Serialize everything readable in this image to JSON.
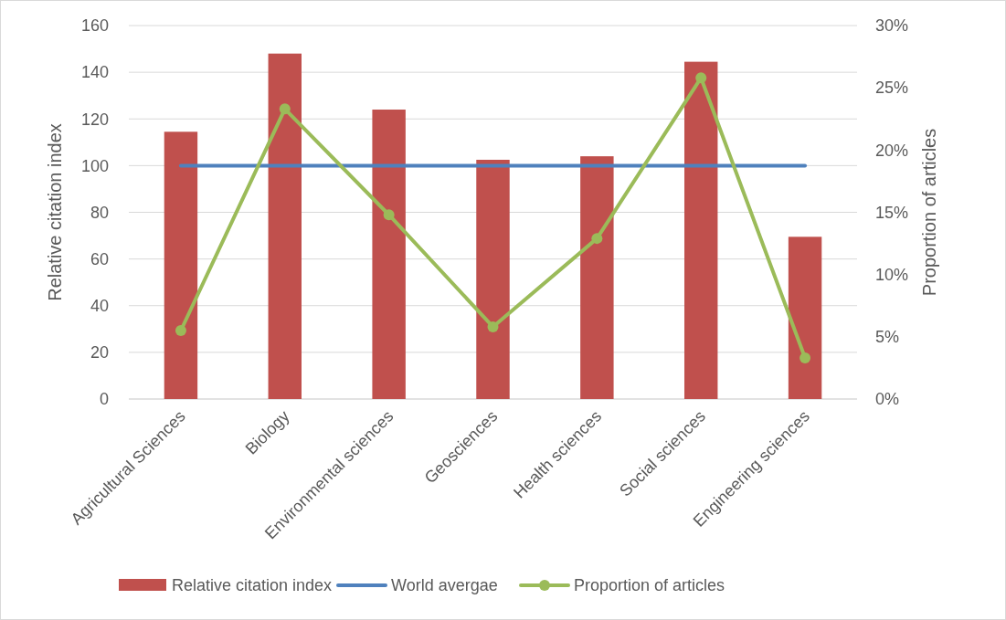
{
  "chart_data": {
    "type": "bar",
    "categories": [
      "Agricultural Sciences",
      "Biology",
      "Environmental sciences",
      "Geosciences",
      "Health sciences",
      "Social sciences",
      "Engineering sciences"
    ],
    "series": [
      {
        "name": "Relative citation index",
        "color": "#c0504d",
        "values": [
          114.5,
          148,
          124,
          102.5,
          104,
          144.5,
          69.5
        ]
      },
      {
        "name": "World avergae",
        "type": "line",
        "marker": "none",
        "color": "#4f81bd",
        "values": [
          100,
          100,
          100,
          100,
          100,
          100,
          100
        ]
      },
      {
        "name": "Proportion of articles",
        "type": "line",
        "marker": "circle",
        "axis": "y2",
        "color": "#9bbb59",
        "values": [
          5.5,
          23.3,
          14.8,
          5.8,
          12.9,
          25.8,
          3.3
        ]
      }
    ],
    "ylabel": "Relative citation index",
    "y2label": "Proportion of articles",
    "ylim": [
      0,
      160
    ],
    "yticks": [
      0,
      20,
      40,
      60,
      80,
      100,
      120,
      140,
      160
    ],
    "y2lim": [
      0,
      30
    ],
    "y2ticks": [
      {
        "value": 0,
        "label": "0%"
      },
      {
        "value": 5,
        "label": "5%"
      },
      {
        "value": 10,
        "label": "10%"
      },
      {
        "value": 15,
        "label": "15%"
      },
      {
        "value": 20,
        "label": "20%"
      },
      {
        "value": 25,
        "label": "25%"
      },
      {
        "value": 30,
        "label": "30%"
      }
    ],
    "grid": "y",
    "legend": "bottom"
  }
}
